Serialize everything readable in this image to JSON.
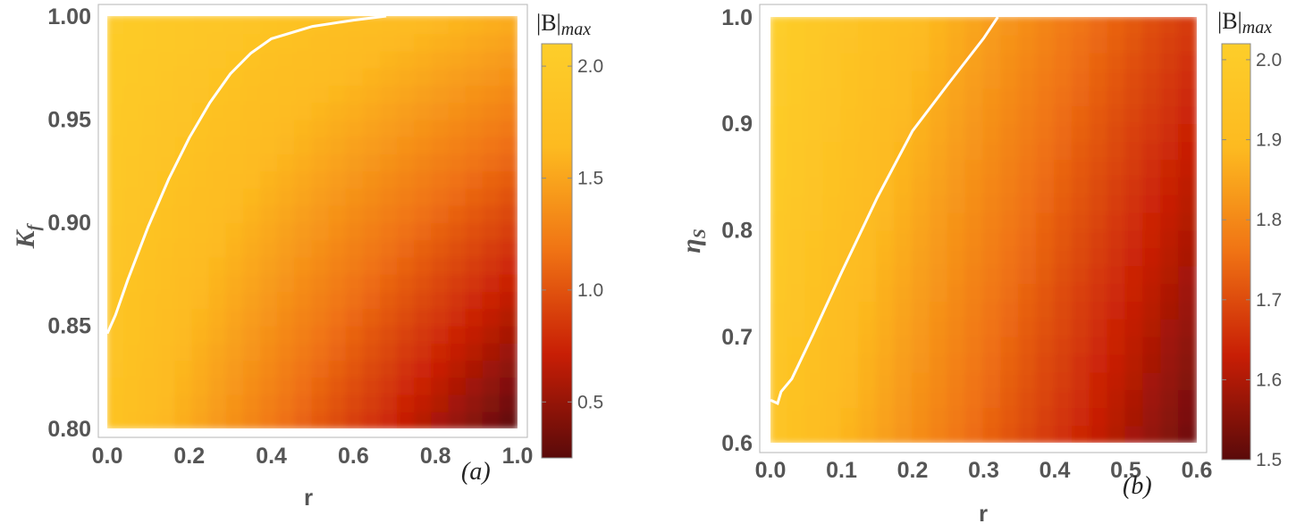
{
  "chart_data": [
    {
      "type": "heatmap",
      "panel_label": "(a)",
      "xlabel": "r",
      "ylabel": "K",
      "ylabel_sub": "f",
      "xlim": [
        0.0,
        1.0
      ],
      "ylim": [
        0.8,
        1.0
      ],
      "x_ticks": [
        "0.0",
        "0.2",
        "0.4",
        "0.6",
        "0.8",
        "1.0"
      ],
      "y_ticks": [
        "0.80",
        "0.85",
        "0.90",
        "0.95",
        "1.00"
      ],
      "colorbar": {
        "title": "|B|",
        "title_sub": "max",
        "range": [
          0.25,
          2.1
        ],
        "ticks": [
          "0.5",
          "1.0",
          "1.5",
          "2.0"
        ],
        "colormap": [
          "#5a0a0a",
          "#c81e05",
          "#f07314",
          "#fdba20",
          "#fdce2a"
        ]
      },
      "contour": {
        "color": "#ffffff",
        "points": [
          [
            0.0,
            0.846
          ],
          [
            0.02,
            0.855
          ],
          [
            0.05,
            0.872
          ],
          [
            0.1,
            0.898
          ],
          [
            0.15,
            0.921
          ],
          [
            0.2,
            0.941
          ],
          [
            0.25,
            0.958
          ],
          [
            0.3,
            0.972
          ],
          [
            0.35,
            0.982
          ],
          [
            0.4,
            0.989
          ],
          [
            0.5,
            0.995
          ],
          [
            0.6,
            0.998
          ],
          [
            0.68,
            1.0
          ]
        ]
      },
      "corner_values": {
        "x0_y0": 1.85,
        "x1_y0": 0.25,
        "x0_y1": 2.05,
        "x1_y1": 1.55
      }
    },
    {
      "type": "heatmap",
      "panel_label": "(b)",
      "xlabel": "r",
      "ylabel": "η",
      "ylabel_sub": "S",
      "xlim": [
        0.0,
        0.6
      ],
      "ylim": [
        0.6,
        1.0
      ],
      "x_ticks": [
        "0.0",
        "0.1",
        "0.2",
        "0.3",
        "0.4",
        "0.5",
        "0.6"
      ],
      "y_ticks": [
        "0.6",
        "0.7",
        "0.8",
        "0.9",
        "1.0"
      ],
      "colorbar": {
        "title": "|B|",
        "title_sub": "max",
        "range": [
          1.5,
          2.02
        ],
        "ticks": [
          "1.5",
          "1.6",
          "1.7",
          "1.8",
          "1.9",
          "2.0"
        ],
        "colormap": [
          "#5a0a0a",
          "#c81e05",
          "#f07314",
          "#fdba20",
          "#fdce2a"
        ]
      },
      "contour": {
        "color": "#ffffff",
        "points": [
          [
            0.0,
            0.64
          ],
          [
            0.01,
            0.637
          ],
          [
            0.015,
            0.648
          ],
          [
            0.03,
            0.66
          ],
          [
            0.06,
            0.702
          ],
          [
            0.1,
            0.76
          ],
          [
            0.15,
            0.83
          ],
          [
            0.2,
            0.893
          ],
          [
            0.25,
            0.937
          ],
          [
            0.3,
            0.98
          ],
          [
            0.32,
            1.0
          ]
        ]
      },
      "corner_values": {
        "x0_y0": 1.96,
        "x1_y0": 1.52,
        "x0_y1": 2.02,
        "x1_y1": 1.67
      }
    }
  ]
}
